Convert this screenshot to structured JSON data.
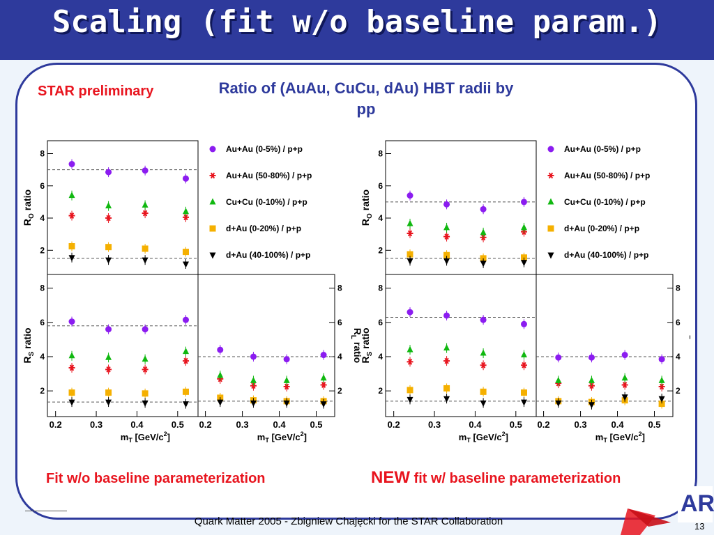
{
  "slide": {
    "title": "Scaling (fit w/o baseline param.)",
    "star_preliminary": "STAR preliminary",
    "header": "Ratio of (AuAu, CuCu, dAu) HBT radii by pp",
    "caption_left": "Fit w/o baseline parameterization",
    "caption_right_new": "NEW",
    "caption_right_rest": " fit w/ baseline parameterization",
    "footer": "Quark Matter 2005 - Zbigniew Chajęcki for the STAR Collaboration",
    "page_number": "13",
    "logo_text": "AR",
    "colors": {
      "title_bar": "#2e3a9c",
      "accent_red": "#e8141e",
      "text_blue": "#2e3a9c"
    }
  },
  "legend": [
    {
      "label": "Au+Au (0-5%) / p+p",
      "marker": "circle",
      "color": "#8b1cf0"
    },
    {
      "label": "Au+Au (50-80%) / p+p",
      "marker": "star",
      "color": "#e8141e"
    },
    {
      "label": "Cu+Cu (0-10%) / p+p",
      "marker": "triangle-up",
      "color": "#10b810"
    },
    {
      "label": "d+Au (0-20%) / p+p",
      "marker": "square",
      "color": "#f5b000"
    },
    {
      "label": "d+Au (40-100%) / p+p",
      "marker": "triangle-down",
      "color": "#000000"
    }
  ],
  "chart_data": [
    {
      "type": "scatter",
      "group": "Fit w/o baseline parameterization",
      "panel": "R_O",
      "ylabel": "R_O ratio",
      "xlim": [
        0.18,
        0.55
      ],
      "ylim": [
        0.5,
        8.8
      ],
      "yticks": [
        2,
        4,
        6,
        8
      ],
      "x": [
        0.24,
        0.33,
        0.42,
        0.52
      ],
      "series": [
        {
          "name": "Au+Au (0-5%) / p+p",
          "values": [
            7.35,
            6.85,
            6.95,
            6.45
          ]
        },
        {
          "name": "Au+Au (50-80%) / p+p",
          "values": [
            4.15,
            4.0,
            4.3,
            4.05
          ]
        },
        {
          "name": "Cu+Cu (0-10%) / p+p",
          "values": [
            5.4,
            4.75,
            4.8,
            4.4
          ]
        },
        {
          "name": "d+Au (0-20%) / p+p",
          "values": [
            2.25,
            2.2,
            2.1,
            1.9
          ]
        },
        {
          "name": "d+Au (40-100%) / p+p",
          "values": [
            1.55,
            1.4,
            1.4,
            1.15
          ]
        }
      ],
      "ref_lines": [
        7.0,
        1.5
      ]
    },
    {
      "type": "scatter",
      "group": "Fit w/o baseline parameterization",
      "panel": "R_S",
      "xlabel": "m_T [GeV/c^2]",
      "ylabel": "R_S ratio",
      "xlim": [
        0.18,
        0.55
      ],
      "ylim": [
        0.5,
        8.8
      ],
      "xticks": [
        0.2,
        0.3,
        0.4,
        0.5
      ],
      "yticks": [
        2,
        4,
        6,
        8
      ],
      "x": [
        0.24,
        0.33,
        0.42,
        0.52
      ],
      "series": [
        {
          "name": "Au+Au (0-5%) / p+p",
          "values": [
            6.05,
            5.6,
            5.6,
            6.15
          ]
        },
        {
          "name": "Au+Au (50-80%) / p+p",
          "values": [
            3.35,
            3.25,
            3.25,
            3.75
          ]
        },
        {
          "name": "Cu+Cu (0-10%) / p+p",
          "values": [
            4.05,
            3.95,
            3.85,
            4.3
          ]
        },
        {
          "name": "d+Au (0-20%) / p+p",
          "values": [
            1.9,
            1.9,
            1.85,
            1.95
          ]
        },
        {
          "name": "d+Au (40-100%) / p+p",
          "values": [
            1.35,
            1.35,
            1.3,
            1.25
          ]
        }
      ],
      "ref_lines": [
        5.8,
        1.35
      ]
    },
    {
      "type": "scatter",
      "group": "Fit w/o baseline parameterization",
      "panel": "R_L",
      "xlabel": "m_T [GeV/c^2]",
      "ylabel": "R_L ratio",
      "xlim": [
        0.18,
        0.55
      ],
      "ylim": [
        0.5,
        8.8
      ],
      "xticks": [
        0.2,
        0.3,
        0.4,
        0.5
      ],
      "yticks": [
        2,
        4,
        6,
        8
      ],
      "x": [
        0.24,
        0.33,
        0.42,
        0.52
      ],
      "series": [
        {
          "name": "Au+Au (0-5%) / p+p",
          "values": [
            4.4,
            4.0,
            3.85,
            4.1
          ]
        },
        {
          "name": "Au+Au (50-80%) / p+p",
          "values": [
            2.7,
            2.3,
            2.25,
            2.35
          ]
        },
        {
          "name": "Cu+Cu (0-10%) / p+p",
          "values": [
            2.9,
            2.6,
            2.6,
            2.75
          ]
        },
        {
          "name": "d+Au (0-20%) / p+p",
          "values": [
            1.6,
            1.45,
            1.4,
            1.4
          ]
        },
        {
          "name": "d+Au (40-100%) / p+p",
          "values": [
            1.35,
            1.3,
            1.3,
            1.25
          ]
        }
      ],
      "ref_lines": [
        4.0,
        1.4
      ]
    },
    {
      "type": "scatter",
      "group": "NEW fit w/ baseline parameterization",
      "panel": "R_O",
      "ylabel": "R_O ratio",
      "xlim": [
        0.18,
        0.55
      ],
      "ylim": [
        0.5,
        8.8
      ],
      "yticks": [
        2,
        4,
        6,
        8
      ],
      "x": [
        0.24,
        0.33,
        0.42,
        0.52
      ],
      "series": [
        {
          "name": "Au+Au (0-5%) / p+p",
          "values": [
            5.4,
            4.85,
            4.55,
            5.0
          ]
        },
        {
          "name": "Au+Au (50-80%) / p+p",
          "values": [
            3.05,
            2.85,
            2.8,
            3.15
          ]
        },
        {
          "name": "Cu+Cu (0-10%) / p+p",
          "values": [
            3.65,
            3.4,
            3.1,
            3.4
          ]
        },
        {
          "name": "d+Au (0-20%) / p+p",
          "values": [
            1.75,
            1.7,
            1.5,
            1.55
          ]
        },
        {
          "name": "d+Au (40-100%) / p+p",
          "values": [
            1.35,
            1.35,
            1.2,
            1.25
          ]
        }
      ],
      "ref_lines": [
        5.0,
        1.5
      ]
    },
    {
      "type": "scatter",
      "group": "NEW fit w/ baseline parameterization",
      "panel": "R_S",
      "xlabel": "m_T [GeV/c^2]",
      "ylabel": "R_S ratio",
      "xlim": [
        0.18,
        0.55
      ],
      "ylim": [
        0.5,
        8.8
      ],
      "xticks": [
        0.2,
        0.3,
        0.4,
        0.5
      ],
      "yticks": [
        2,
        4,
        6,
        8
      ],
      "x": [
        0.24,
        0.33,
        0.42,
        0.52
      ],
      "series": [
        {
          "name": "Au+Au (0-5%) / p+p",
          "values": [
            6.6,
            6.4,
            6.15,
            5.9
          ]
        },
        {
          "name": "Au+Au (50-80%) / p+p",
          "values": [
            3.7,
            3.75,
            3.5,
            3.5
          ]
        },
        {
          "name": "Cu+Cu (0-10%) / p+p",
          "values": [
            4.4,
            4.5,
            4.2,
            4.1
          ]
        },
        {
          "name": "d+Au (0-20%) / p+p",
          "values": [
            2.05,
            2.15,
            1.95,
            1.9
          ]
        },
        {
          "name": "d+Au (40-100%) / p+p",
          "values": [
            1.5,
            1.55,
            1.3,
            1.35
          ]
        }
      ],
      "ref_lines": [
        6.3,
        1.4
      ]
    },
    {
      "type": "scatter",
      "group": "NEW fit w/ baseline parameterization",
      "panel": "R_L",
      "xlabel": "m_T [GeV/c^2]",
      "ylabel": "R_L ratio",
      "xlim": [
        0.18,
        0.55
      ],
      "ylim": [
        0.5,
        8.8
      ],
      "xticks": [
        0.2,
        0.3,
        0.4,
        0.5
      ],
      "yticks": [
        2,
        4,
        6,
        8
      ],
      "x": [
        0.24,
        0.33,
        0.42,
        0.52
      ],
      "series": [
        {
          "name": "Au+Au (0-5%) / p+p",
          "values": [
            3.95,
            3.95,
            4.1,
            3.85
          ]
        },
        {
          "name": "Au+Au (50-80%) / p+p",
          "values": [
            2.45,
            2.3,
            2.35,
            2.25
          ]
        },
        {
          "name": "Cu+Cu (0-10%) / p+p",
          "values": [
            2.6,
            2.6,
            2.75,
            2.6
          ]
        },
        {
          "name": "d+Au (0-20%) / p+p",
          "values": [
            1.4,
            1.35,
            1.45,
            1.25
          ]
        },
        {
          "name": "d+Au (40-100%) / p+p",
          "values": [
            1.3,
            1.2,
            1.65,
            1.55
          ]
        }
      ],
      "ref_lines": [
        4.0,
        1.4
      ]
    }
  ]
}
